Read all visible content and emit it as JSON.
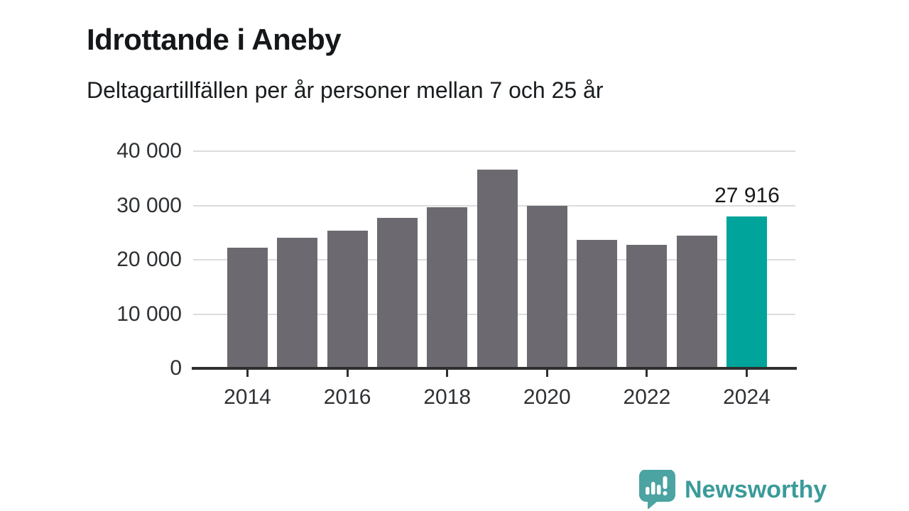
{
  "header": {
    "title": "Idrottande i Aneby",
    "subtitle": "Deltagartillfällen per år personer mellan 7 och 25 år"
  },
  "chart_data": {
    "type": "bar",
    "title": "Idrottande i Aneby",
    "subtitle": "Deltagartillfällen per år personer mellan 7 och 25 år",
    "categories": [
      2014,
      2015,
      2016,
      2017,
      2018,
      2019,
      2020,
      2021,
      2022,
      2023,
      2024
    ],
    "values": [
      22200,
      24100,
      25400,
      27700,
      29700,
      36600,
      29900,
      23700,
      22800,
      24400,
      27916
    ],
    "highlight": {
      "category": 2024,
      "value": 27916,
      "value_label": "27 916"
    },
    "ylim": [
      0,
      40000
    ],
    "yticks": [
      0,
      10000,
      20000,
      30000,
      40000
    ],
    "ytick_labels": [
      "0",
      "10 000",
      "20 000",
      "30 000",
      "40 000"
    ],
    "xtick_labels": [
      "2014",
      "2016",
      "2018",
      "2020",
      "2022",
      "2024"
    ],
    "grid": "horizontal gridlines on, vertical off",
    "legend": "none",
    "colors": {
      "bar": "#6c6a70",
      "highlight_bar": "#00a49a",
      "gridline": "#dcdcdc",
      "axis": "#2f2f2f",
      "tick_text": "#2e3134"
    }
  },
  "footer": {
    "brand": "Newsworthy",
    "brand_color": "#3a9b9a",
    "logo_icon": "newsworthy-chart-bubble-icon",
    "logo_icon_color": "#4ba3a2"
  }
}
